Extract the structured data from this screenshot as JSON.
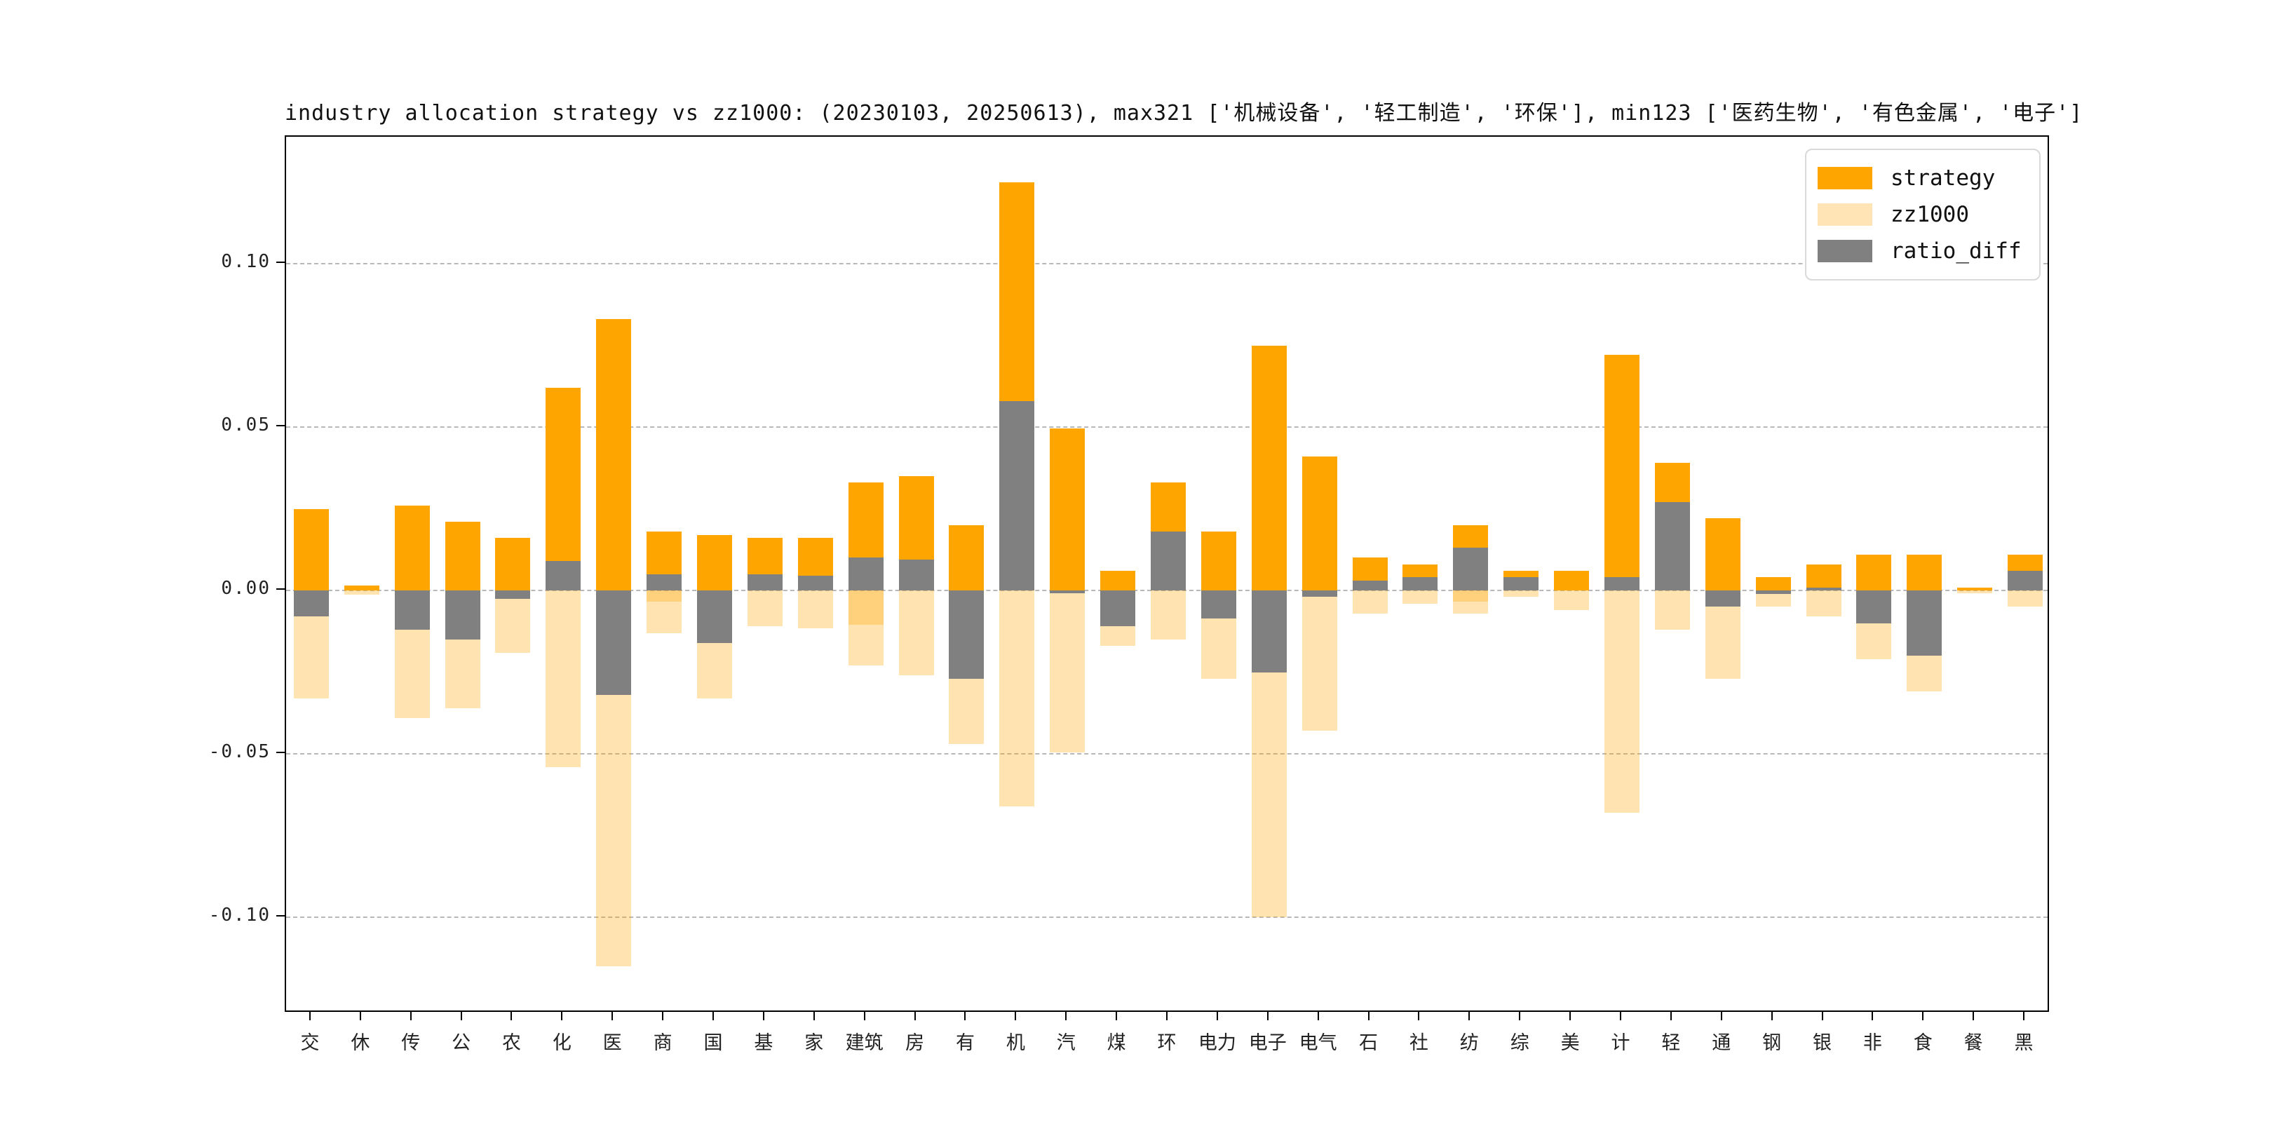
{
  "title": "industry allocation strategy vs zz1000: (20230103, 20250613), max321 ['机械设备', '轻工制造', '环保'], min123 ['医药生物', '有色金属', '电子']",
  "legend": {
    "items": [
      {
        "label": "strategy",
        "color": "#FFA500"
      },
      {
        "label": "zz1000",
        "color": "#FFE4B5"
      },
      {
        "label": "ratio_diff",
        "color": "#808080"
      }
    ]
  },
  "chart_data": {
    "type": "bar",
    "title": "industry allocation strategy vs zz1000: (20230103, 20250613), max321 ['机械设备', '轻工制造', '环保'], min123 ['医药生物', '有色金属', '电子']",
    "xlabel": "",
    "ylabel": "",
    "grid": "horizontal dashed",
    "legend_position": "upper right",
    "ylim": [
      -0.129,
      0.139
    ],
    "ytick_values": [
      0.1,
      0.05,
      0.0,
      -0.05,
      -0.1
    ],
    "ytick_labels": [
      "0.10",
      "0.05",
      "0.00",
      "-0.05",
      "-0.10"
    ],
    "categories": [
      "交",
      "休",
      "传",
      "公",
      "农",
      "化",
      "医",
      "商",
      "国",
      "基",
      "家",
      "建筑",
      "房",
      "有",
      "机",
      "汽",
      "煤",
      "环",
      "电力",
      "电子",
      "电气",
      "石",
      "社",
      "纺",
      "综",
      "美",
      "计",
      "轻",
      "通",
      "钢",
      "银",
      "非",
      "食",
      "餐",
      "黑"
    ],
    "series": [
      {
        "name": "strategy",
        "color": "#FFA500",
        "values": [
          0.025,
          0.0015,
          0.026,
          0.021,
          0.016,
          0.062,
          0.083,
          0.018,
          0.017,
          0.016,
          0.016,
          0.033,
          0.035,
          0.02,
          0.125,
          0.0495,
          0.006,
          0.033,
          0.018,
          0.075,
          0.041,
          0.01,
          0.008,
          0.02,
          0.006,
          0.006,
          0.072,
          0.039,
          0.022,
          0.004,
          0.008,
          0.011,
          0.011,
          0.0008,
          0.011
        ]
      },
      {
        "name": "zz1000",
        "color": "rgba(255,165,0,0.3)",
        "note": "plotted downward as -zz1000; overlay_values are second translucent bars visible at 商/建筑/纺",
        "values": [
          -0.033,
          -0.0012,
          -0.039,
          -0.036,
          -0.019,
          -0.054,
          -0.115,
          -0.013,
          -0.033,
          -0.011,
          -0.0115,
          -0.023,
          -0.026,
          -0.047,
          -0.066,
          -0.0495,
          -0.017,
          -0.015,
          -0.027,
          -0.1,
          -0.043,
          -0.007,
          -0.004,
          -0.007,
          -0.002,
          -0.006,
          -0.068,
          -0.012,
          -0.027,
          -0.005,
          -0.008,
          -0.021,
          -0.031,
          -0.0008,
          -0.005
        ],
        "overlay_values": [
          null,
          null,
          null,
          null,
          null,
          null,
          null,
          -0.0035,
          null,
          null,
          null,
          -0.0105,
          null,
          null,
          null,
          null,
          null,
          null,
          null,
          null,
          null,
          null,
          null,
          -0.0035,
          null,
          null,
          null,
          null,
          null,
          null,
          null,
          null,
          null,
          null,
          null
        ]
      },
      {
        "name": "ratio_diff",
        "color": "#808080",
        "values": [
          -0.008,
          0,
          -0.012,
          -0.015,
          -0.0025,
          0.009,
          -0.032,
          0.005,
          -0.016,
          0.005,
          0.0045,
          0.01,
          0.0095,
          -0.027,
          0.058,
          -0.0008,
          -0.011,
          0.018,
          -0.0085,
          -0.025,
          -0.002,
          0.003,
          0.004,
          0.013,
          0.004,
          0,
          0.004,
          0.027,
          -0.005,
          -0.001,
          0.0008,
          -0.01,
          -0.02,
          0,
          0.006
        ]
      }
    ]
  }
}
